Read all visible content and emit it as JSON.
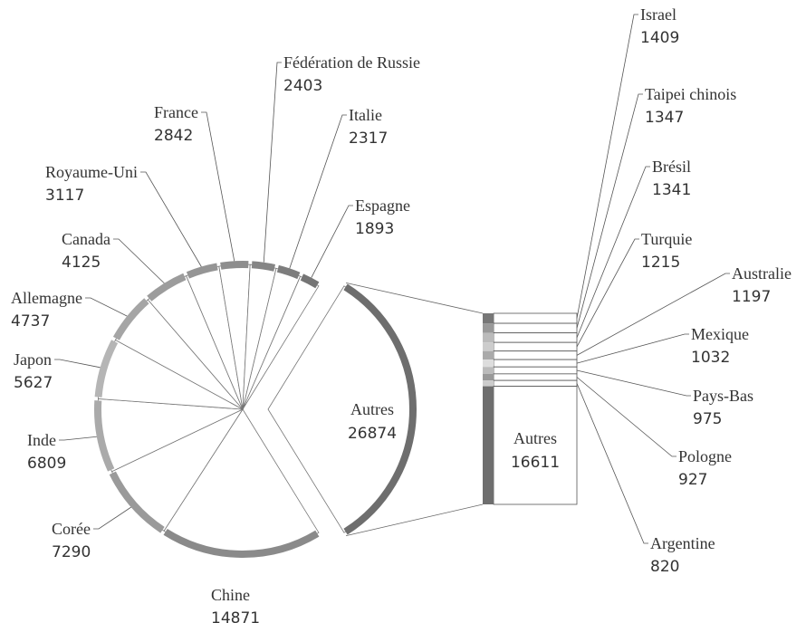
{
  "chart_data": [
    {
      "type": "pie",
      "categories": [
        "Autres",
        "Chine",
        "Corée",
        "Inde",
        "Japon",
        "Allemagne",
        "Canada",
        "Royaume-Uni",
        "France",
        "Fédération de Russie",
        "Italie",
        "Espagne"
      ],
      "values": [
        26874,
        14871,
        7290,
        6809,
        5627,
        4737,
        4125,
        3117,
        2842,
        2403,
        2317,
        1893
      ],
      "colors": [
        "#6e6e6e",
        "#8a8a8a",
        "#9a9a9a",
        "#aaaaaa",
        "#b5b5b5",
        "#a5a5a5",
        "#9c9c9c",
        "#959595",
        "#8d8d8d",
        "#858585",
        "#7d7d7d",
        "#757575"
      ]
    },
    {
      "type": "bar",
      "categories": [
        "Israel",
        "Taipei chinois",
        "Brésil",
        "Turquie",
        "Australie",
        "Mexique",
        "Pays-Bas",
        "Pologne",
        "Argentine",
        "Autres"
      ],
      "values": [
        1409,
        1347,
        1341,
        1215,
        1197,
        1032,
        975,
        927,
        820,
        16611
      ],
      "colors": [
        "#777777",
        "#999999",
        "#bbbbbb",
        "#cccccc",
        "#aaaaaa",
        "#dddddd",
        "#bbbbbb",
        "#999999",
        "#cccccc",
        "#6e6e6e"
      ]
    }
  ]
}
